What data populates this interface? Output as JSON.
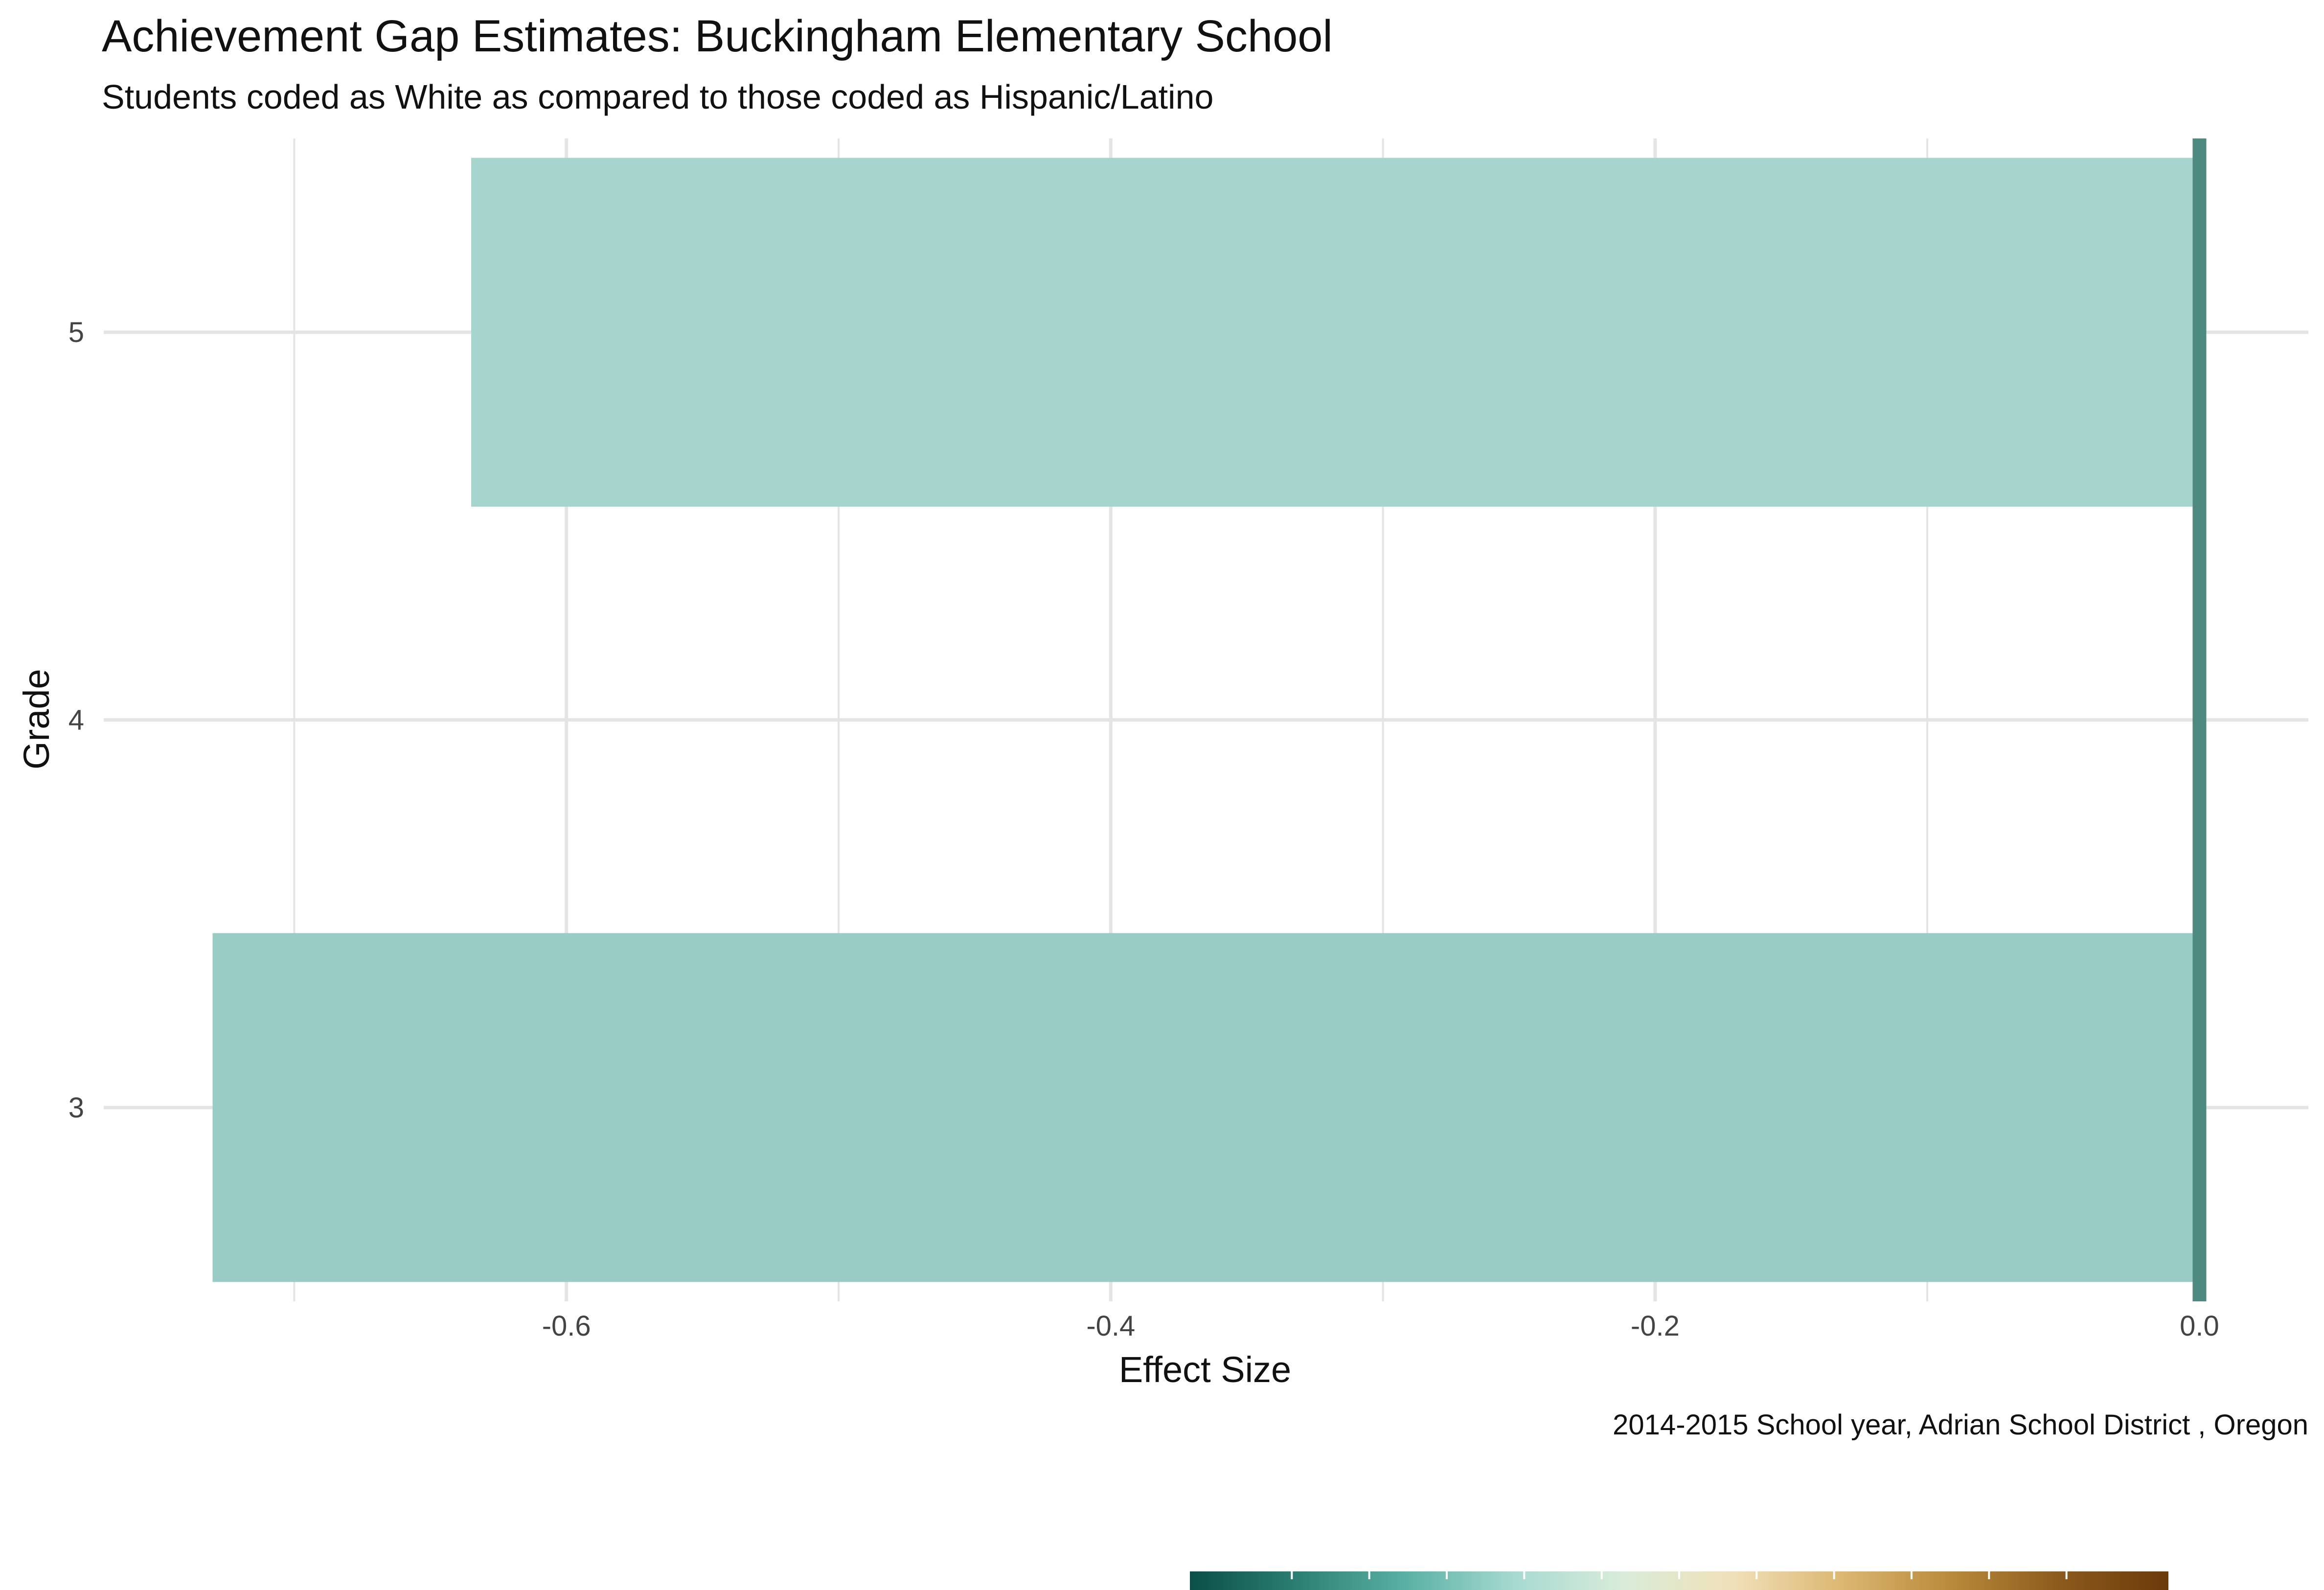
{
  "chart_data": {
    "type": "bar",
    "orientation": "horizontal",
    "title": "Achievement Gap Estimates: Buckingham Elementary School",
    "subtitle": "Students coded as White as compared to those coded as Hispanic/Latino",
    "xlabel": "Effect Size",
    "ylabel": "Grade",
    "caption": "2014-2015 School year,  Adrian School District , Oregon",
    "categories": [
      "3",
      "4",
      "5"
    ],
    "values": [
      -0.73,
      0.0,
      -0.635
    ],
    "xlim": [
      -0.77,
      0.04
    ],
    "x_ticks": [
      -0.6,
      -0.4,
      -0.2,
      0.0
    ],
    "x_tick_labels": [
      "-0.6",
      "-0.4",
      "-0.2",
      "0.0"
    ],
    "grid": true,
    "reference_line_x": 0.0,
    "colors": {
      "bar_grade_3": "#99ccc5",
      "bar_grade_4": "#f0e3c2",
      "bar_grade_5": "#a6d5ce",
      "reference_line": "#4f8a80",
      "grid": "#e4e4e4",
      "text": "#111111",
      "tick_text": "#444444"
    },
    "legend": {
      "type": "colorbar",
      "placement": "bottom",
      "colors": [
        "#0b4f48",
        "#2c7f73",
        "#5bb1a5",
        "#a8dad1",
        "#d9ecd9",
        "#f0e0b8",
        "#dcb772",
        "#b98a3a",
        "#8c5a1c",
        "#6a3a0a"
      ]
    }
  }
}
